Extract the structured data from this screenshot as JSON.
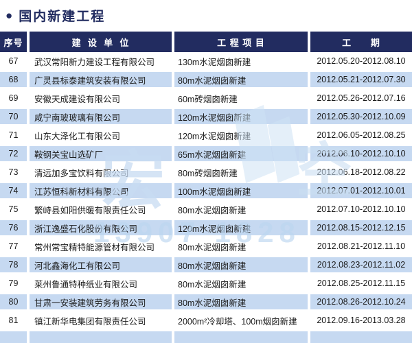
{
  "page": {
    "bullet": "●",
    "title": "国内新建工程"
  },
  "colors": {
    "navy": "#222c60",
    "stripe": "#c6d9f1",
    "text": "#1b1b1b"
  },
  "watermark": {
    "glyphs": [
      "宏",
      "空"
    ],
    "digits": "13907 1828"
  },
  "table": {
    "headers": [
      {
        "label": "序号"
      },
      {
        "label": "建  设  单  位"
      },
      {
        "label": "工 程 项 目"
      },
      {
        "label": "工      期"
      }
    ],
    "rows": [
      {
        "index": "67",
        "company": "武汉常阳新力建设工程有限公司",
        "project": "130m水泥烟囱新建",
        "period": "2012.05.20-2012.08.10"
      },
      {
        "index": "68",
        "company": "广灵县标泰建筑安装有限公司",
        "project": "80m水泥烟囱新建",
        "period": "2012.05.21-2012.07.30"
      },
      {
        "index": "69",
        "company": "安徽天成建设有限公司",
        "project": "60m砖烟囱新建",
        "period": "2012.05.26-2012.07.16"
      },
      {
        "index": "70",
        "company": "咸宁南玻玻璃有限公司",
        "project": "120m水泥烟囱新建",
        "period": "2012.05.30-2012.10.09"
      },
      {
        "index": "71",
        "company": "山东大泽化工有限公司",
        "project": "120m水泥烟囱新建",
        "period": "2012.06.05-2012.08.25"
      },
      {
        "index": "72",
        "company": "鞍钢关宝山选矿厂",
        "project": "65m水泥烟囱新建",
        "period": "2012.06.10-2012.10.10"
      },
      {
        "index": "73",
        "company": "清远加多宝饮料有限公司",
        "project": "80m砖烟囱新建",
        "period": "2012.06.18-2012.08.22"
      },
      {
        "index": "74",
        "company": "江苏恒科新材料有限公司",
        "project": "100m水泥烟囱新建",
        "period": "2012.07.01-2012.10.01"
      },
      {
        "index": "75",
        "company": "繁峙县如阳供暖有限责任公司",
        "project": "80m水泥烟囱新建",
        "period": "2012.07.10-2012.10.10"
      },
      {
        "index": "76",
        "company": "浙江逸盛石化股份有限公司",
        "project": "120m水泥烟囱新建",
        "period": "2012.08.15-2012.12.15"
      },
      {
        "index": "77",
        "company": "常州常宝精特能源管材有限公司",
        "project": "80m水泥烟囱新建",
        "period": "2012.08.21-2012.11.10"
      },
      {
        "index": "78",
        "company": "河北鑫海化工有限公司",
        "project": "80m水泥烟囱新建",
        "period": "2012.08.23-2012.11.02"
      },
      {
        "index": "79",
        "company": "莱州鲁通特种纸业有限公司",
        "project": "80m水泥烟囱新建",
        "period": "2012.08.25-2012.11.15"
      },
      {
        "index": "80",
        "company": "甘肃一安装建筑劳务有限公司",
        "project": "80m水泥烟囱新建",
        "period": "2012.08.26-2012.10.24"
      },
      {
        "index": "81",
        "company": "镇江新华电集团有限责任公司",
        "project": "2000m²冷却塔、100m烟囱新建",
        "period": "2012.09.16-2013.03.28"
      },
      {
        "index": "",
        "company": "",
        "project": "",
        "period": ""
      }
    ]
  }
}
